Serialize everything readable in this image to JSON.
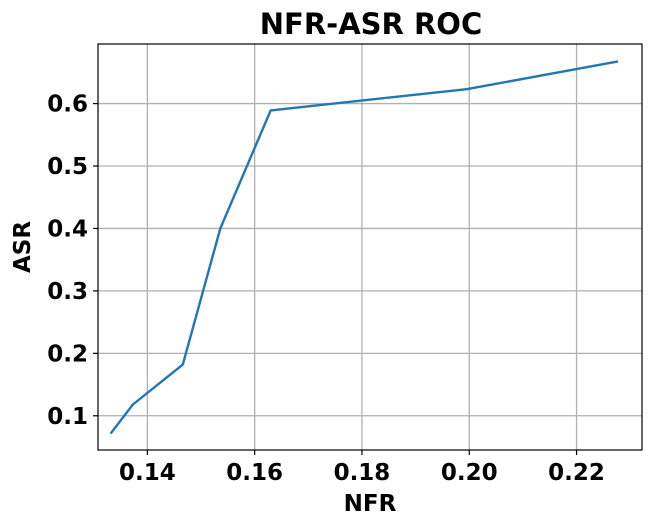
{
  "chart_data": {
    "type": "line",
    "title": "NFR-ASR ROC",
    "xlabel": "NFR",
    "ylabel": "ASR",
    "xlim": [
      0.1308,
      0.2322
    ],
    "ylim": [
      0.0452,
      0.6954
    ],
    "xticks": [
      0.14,
      0.16,
      0.18,
      0.2,
      0.22
    ],
    "xtick_labels": [
      "0.14",
      "0.16",
      "0.18",
      "0.20",
      "0.22"
    ],
    "yticks": [
      0.1,
      0.2,
      0.3,
      0.4,
      0.5,
      0.6
    ],
    "ytick_labels": [
      "0.1",
      "0.2",
      "0.3",
      "0.4",
      "0.5",
      "0.6"
    ],
    "grid": true,
    "series": [
      {
        "color": "#1f77b4",
        "x": [
          0.1333,
          0.1373,
          0.1466,
          0.1536,
          0.163,
          0.1995,
          0.2275
        ],
        "y": [
          0.073,
          0.118,
          0.182,
          0.4,
          0.589,
          0.623,
          0.667
        ]
      }
    ]
  }
}
